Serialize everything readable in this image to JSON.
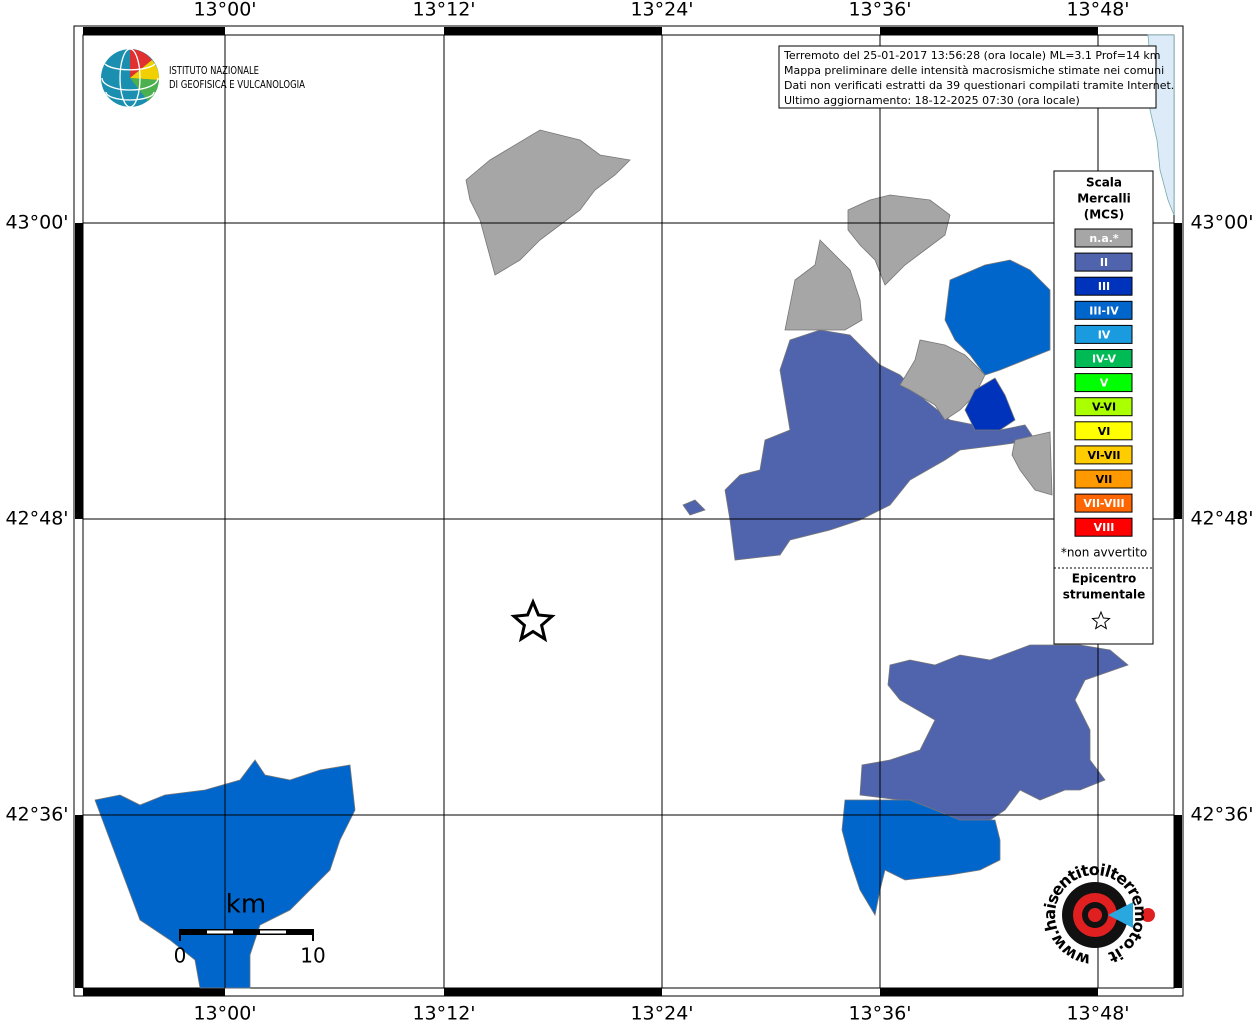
{
  "header": {
    "institute": [
      "ISTITUTO NAZIONALE",
      "DI GEOFISICA E VULCANOLOGIA"
    ]
  },
  "info": {
    "lines": [
      "Terremoto del 25-01-2017 13:56:28 (ora locale) ML=3.1 Prof=14 km",
      "Mappa preliminare delle intensità macrosismiche stimate nei comuni",
      "Dati non verificati estratti da 39 questionari compilati tramite Internet.",
      "Ultimo aggiornamento: 18-12-2025 07:30 (ora locale)"
    ]
  },
  "axes": {
    "longitude": [
      "13°00'",
      "13°12'",
      "13°24'",
      "13°36'",
      "13°48'"
    ],
    "latitude": [
      "43°00'",
      "42°48'",
      "42°36'"
    ]
  },
  "legend": {
    "title": [
      "Scala",
      "Mercalli",
      "(MCS)"
    ],
    "items": [
      {
        "label": "n.a.*",
        "color": "#a6a6a6"
      },
      {
        "label": "II",
        "color": "#5064ad"
      },
      {
        "label": "III",
        "color": "#0033bb"
      },
      {
        "label": "III-IV",
        "color": "#0066cc"
      },
      {
        "label": "IV",
        "color": "#1a9be0"
      },
      {
        "label": "IV-V",
        "color": "#00bb55"
      },
      {
        "label": "V",
        "color": "#00ff00"
      },
      {
        "label": "V-VI",
        "color": "#aaff00"
      },
      {
        "label": "VI",
        "color": "#ffff00"
      },
      {
        "label": "VI-VII",
        "color": "#ffcc00"
      },
      {
        "label": "VII",
        "color": "#ff9900"
      },
      {
        "label": "VII-VIII",
        "color": "#ff6600"
      },
      {
        "label": "VIII",
        "color": "#ff0000"
      }
    ],
    "note": "*non avvertito",
    "epicenter": [
      "Epicentro",
      "strumentale"
    ]
  },
  "scale_bar": {
    "unit": "km",
    "labels": [
      "0",
      "10"
    ]
  },
  "logo": {
    "text": "www.haisentitoilterremoto.it"
  }
}
